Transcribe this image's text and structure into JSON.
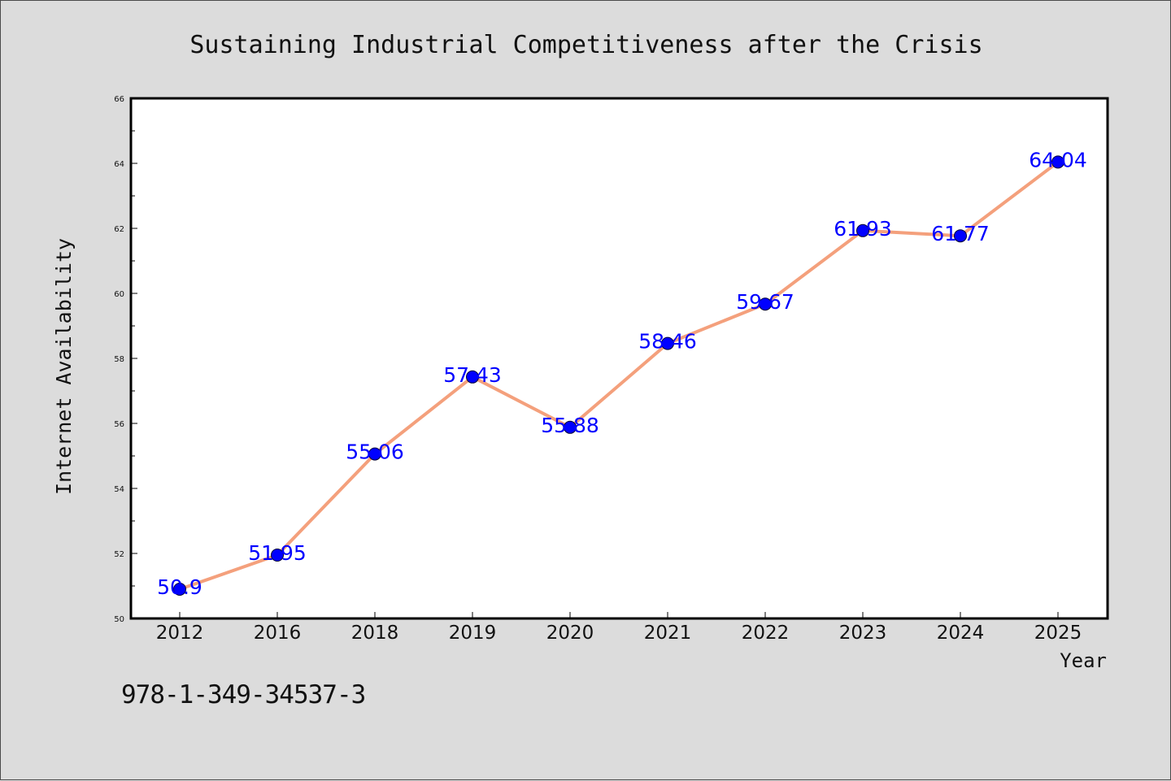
{
  "chart_data": {
    "type": "line",
    "title": "Sustaining Industrial Competitiveness after the Crisis",
    "xlabel": "Year",
    "ylabel": "Internet Availability",
    "categories": [
      "2012",
      "2016",
      "2018",
      "2019",
      "2020",
      "2021",
      "2022",
      "2023",
      "2024",
      "2025"
    ],
    "series": [
      {
        "values": [
          50.9,
          51.95,
          55.06,
          57.43,
          55.88,
          58.46,
          59.67,
          61.93,
          61.77,
          64.04
        ],
        "labels": [
          "50.9",
          "51.95",
          "55.06",
          "57.43",
          "55.88",
          "58.46",
          "59.67",
          "61.93",
          "61.77",
          "64.04"
        ],
        "line_color": "#f4a07c",
        "marker_color": "#0000ff"
      }
    ],
    "ylim": [
      50,
      66
    ],
    "y_ticks": [
      "50",
      "52",
      "54",
      "56",
      "58",
      "60",
      "62",
      "64",
      "66"
    ],
    "grid": false,
    "legend": "none",
    "data_label_color": "#0000ff"
  },
  "annotation": {
    "isbn": "978-1-349-34537-3"
  }
}
